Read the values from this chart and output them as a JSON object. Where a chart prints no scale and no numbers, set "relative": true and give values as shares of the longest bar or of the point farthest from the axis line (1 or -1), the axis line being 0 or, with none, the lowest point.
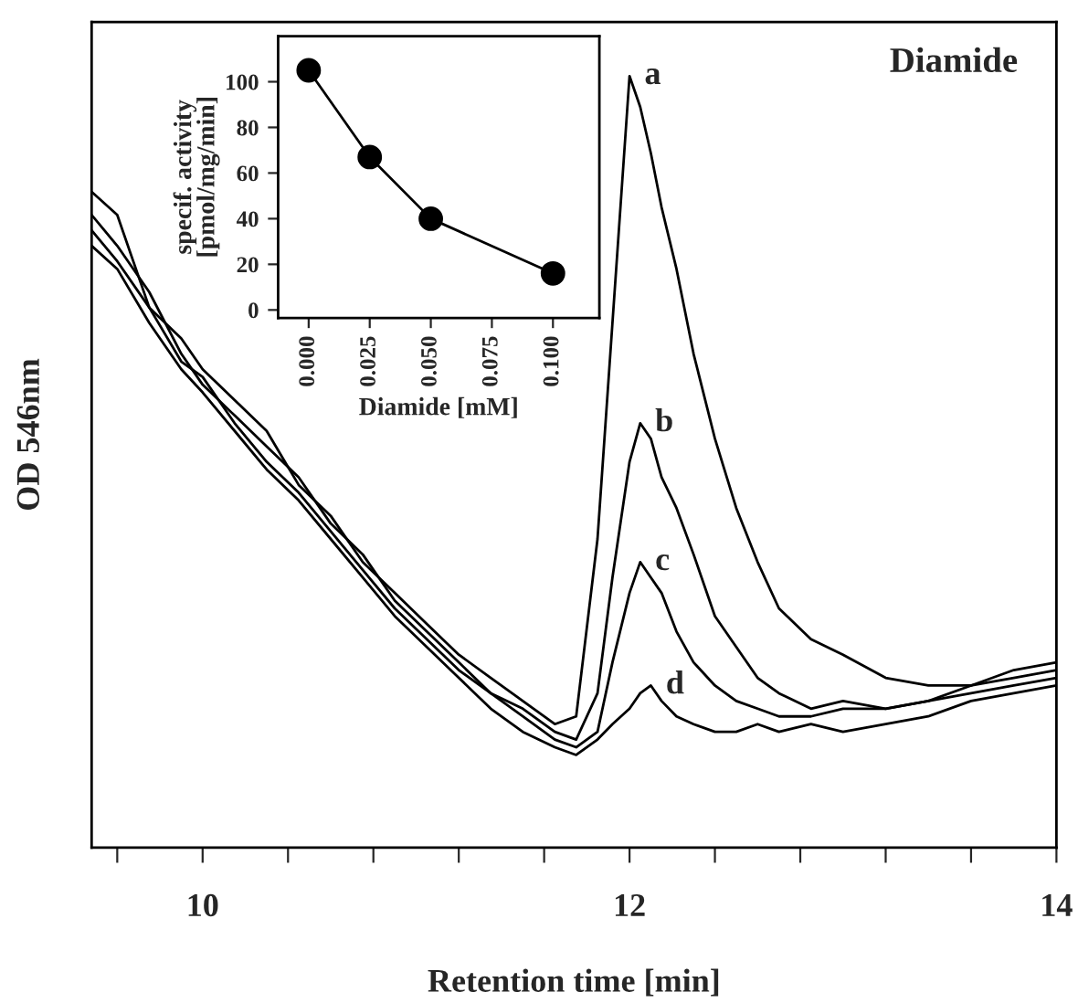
{
  "chart_data": [
    {
      "type": "line",
      "relative": true,
      "xlabel": "Retention time [min]",
      "ylabel": "OD 546nm",
      "tick_labels": "x",
      "xlim": [
        9.48,
        14
      ],
      "xticks": [
        {
          "value": 9.6,
          "label": null
        },
        10,
        {
          "value": 10.4,
          "label": null
        },
        {
          "value": 10.8,
          "label": null
        },
        {
          "value": 11.2,
          "label": null
        },
        {
          "value": 11.6,
          "label": null
        },
        12,
        {
          "value": 12.4,
          "label": null
        },
        {
          "value": 12.8,
          "label": null
        },
        {
          "value": 13.2,
          "label": null
        },
        {
          "value": 13.6,
          "label": null
        },
        14
      ],
      "x": [
        9.48,
        9.6,
        9.75,
        9.9,
        10.0,
        10.15,
        10.3,
        10.45,
        10.6,
        10.75,
        10.9,
        11.05,
        11.2,
        11.35,
        11.5,
        11.65,
        11.75,
        11.85,
        11.92,
        12.0,
        12.05,
        12.1,
        12.15,
        12.22,
        12.3,
        12.4,
        12.5,
        12.6,
        12.7,
        12.85,
        13.0,
        13.2,
        13.4,
        13.6,
        13.8,
        14.0
      ],
      "series": [
        {
          "name": "a",
          "color": "#000000",
          "values": [
            0.85,
            0.82,
            0.7,
            0.66,
            0.62,
            0.58,
            0.54,
            0.47,
            0.43,
            0.37,
            0.33,
            0.29,
            0.25,
            0.22,
            0.19,
            0.16,
            0.17,
            0.4,
            0.68,
            1.0,
            0.96,
            0.9,
            0.83,
            0.75,
            0.64,
            0.53,
            0.44,
            0.37,
            0.31,
            0.27,
            0.25,
            0.22,
            0.21,
            0.21,
            0.23,
            0.24
          ]
        },
        {
          "name": "b",
          "color": "#000000",
          "values": [
            0.82,
            0.78,
            0.72,
            0.64,
            0.6,
            0.56,
            0.52,
            0.48,
            0.42,
            0.38,
            0.32,
            0.28,
            0.24,
            0.2,
            0.18,
            0.15,
            0.14,
            0.2,
            0.35,
            0.5,
            0.55,
            0.53,
            0.48,
            0.44,
            0.38,
            0.3,
            0.26,
            0.22,
            0.2,
            0.18,
            0.19,
            0.18,
            0.19,
            0.21,
            0.22,
            0.23
          ]
        },
        {
          "name": "c",
          "color": "#000000",
          "values": [
            0.8,
            0.76,
            0.7,
            0.63,
            0.61,
            0.55,
            0.5,
            0.46,
            0.41,
            0.36,
            0.31,
            0.27,
            0.23,
            0.2,
            0.17,
            0.14,
            0.13,
            0.15,
            0.24,
            0.33,
            0.37,
            0.35,
            0.33,
            0.28,
            0.24,
            0.21,
            0.19,
            0.18,
            0.17,
            0.17,
            0.18,
            0.18,
            0.19,
            0.2,
            0.21,
            0.22
          ]
        },
        {
          "name": "d",
          "color": "#000000",
          "values": [
            0.78,
            0.75,
            0.68,
            0.62,
            0.59,
            0.54,
            0.49,
            0.45,
            0.4,
            0.35,
            0.3,
            0.26,
            0.22,
            0.18,
            0.15,
            0.13,
            0.12,
            0.14,
            0.16,
            0.18,
            0.2,
            0.21,
            0.19,
            0.17,
            0.16,
            0.15,
            0.15,
            0.16,
            0.15,
            0.16,
            0.15,
            0.16,
            0.17,
            0.19,
            0.2,
            0.21
          ]
        }
      ],
      "annotations": [
        "Diamide"
      ]
    },
    {
      "type": "line",
      "xlabel": "Diamide [mM]",
      "ylabel": "specif. activity\n[pmol/mg/min]",
      "marker": "circle",
      "xlim": [
        -0.0125,
        0.119
      ],
      "ylim": [
        -3.5,
        120
      ],
      "xticks": [
        {
          "value": 0,
          "label": "0.000"
        },
        {
          "value": 0.025,
          "label": "0.025"
        },
        {
          "value": 0.05,
          "label": "0.050"
        },
        {
          "value": 0.075,
          "label": "0.075"
        },
        {
          "value": 0.1,
          "label": "0.100"
        }
      ],
      "yticks": [
        0,
        20,
        40,
        60,
        80,
        100
      ],
      "x": [
        0,
        0.025,
        0.05,
        0.1
      ],
      "series": [
        {
          "color": "#000000",
          "values": [
            105,
            67,
            40,
            16
          ]
        }
      ]
    }
  ]
}
